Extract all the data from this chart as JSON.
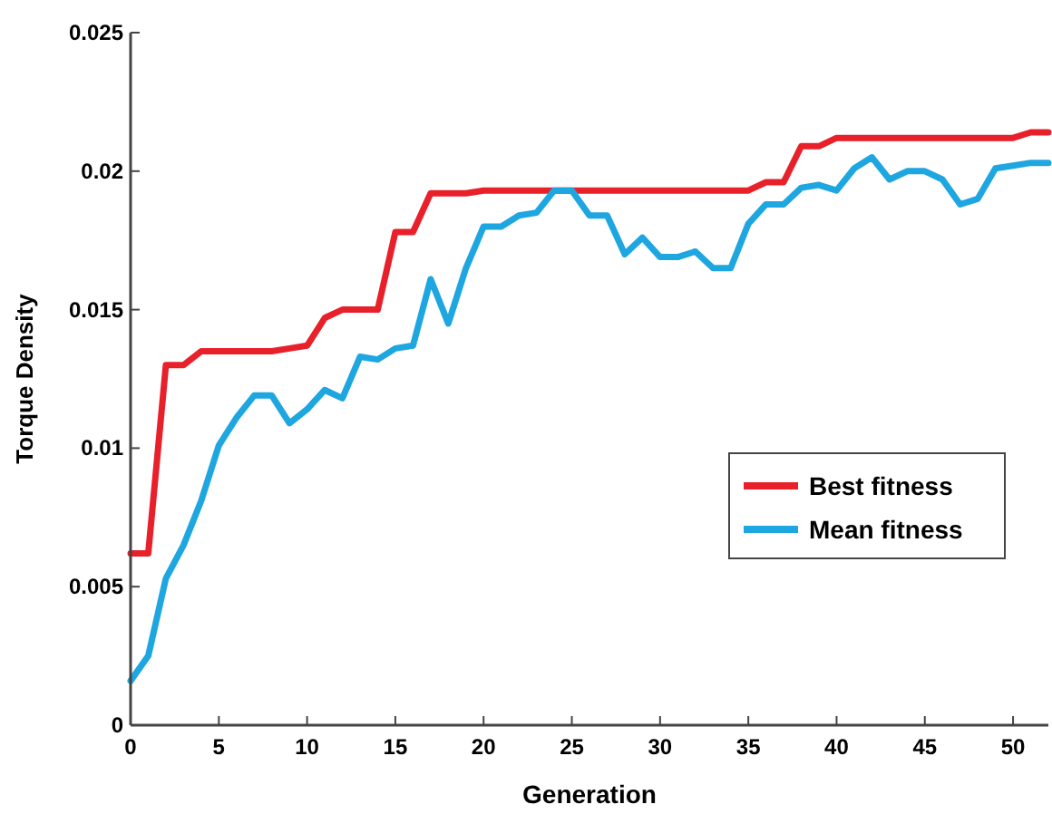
{
  "chart_data": {
    "type": "line",
    "xlabel": "Generation",
    "ylabel": "Torque Density",
    "x": [
      0,
      1,
      2,
      3,
      4,
      5,
      6,
      7,
      8,
      9,
      10,
      11,
      12,
      13,
      14,
      15,
      16,
      17,
      18,
      19,
      20,
      21,
      22,
      23,
      24,
      25,
      26,
      27,
      28,
      29,
      30,
      31,
      32,
      33,
      34,
      35,
      36,
      37,
      38,
      39,
      40,
      41,
      42,
      43,
      44,
      45,
      46,
      47,
      48,
      49,
      50,
      51,
      52
    ],
    "series": [
      {
        "name": "Best fitness",
        "color": "#e8202a",
        "values": [
          0.0062,
          0.0062,
          0.013,
          0.013,
          0.0135,
          0.0135,
          0.0135,
          0.0135,
          0.0135,
          0.0136,
          0.0137,
          0.0147,
          0.015,
          0.015,
          0.015,
          0.0178,
          0.0178,
          0.0192,
          0.0192,
          0.0192,
          0.0193,
          0.0193,
          0.0193,
          0.0193,
          0.0193,
          0.0193,
          0.0193,
          0.0193,
          0.0193,
          0.0193,
          0.0193,
          0.0193,
          0.0193,
          0.0193,
          0.0193,
          0.0193,
          0.0196,
          0.0196,
          0.0209,
          0.0209,
          0.0212,
          0.0212,
          0.0212,
          0.0212,
          0.0212,
          0.0212,
          0.0212,
          0.0212,
          0.0212,
          0.0212,
          0.0212,
          0.0214,
          0.0214
        ]
      },
      {
        "name": "Mean fitness",
        "color": "#1ea6e0",
        "values": [
          0.0016,
          0.0025,
          0.0053,
          0.0065,
          0.0081,
          0.0101,
          0.0111,
          0.0119,
          0.0119,
          0.0109,
          0.0114,
          0.0121,
          0.0118,
          0.0133,
          0.0132,
          0.0136,
          0.0137,
          0.0161,
          0.0145,
          0.0165,
          0.018,
          0.018,
          0.0184,
          0.0185,
          0.0193,
          0.0193,
          0.0184,
          0.0184,
          0.017,
          0.0176,
          0.0169,
          0.0169,
          0.0171,
          0.0165,
          0.0165,
          0.0181,
          0.0188,
          0.0188,
          0.0194,
          0.0195,
          0.0193,
          0.0201,
          0.0205,
          0.0197,
          0.02,
          0.02,
          0.0197,
          0.0188,
          0.019,
          0.0201,
          0.0202,
          0.0203,
          0.0203
        ]
      }
    ],
    "xlim": [
      0,
      52
    ],
    "xticks": [
      0,
      5,
      10,
      15,
      20,
      25,
      30,
      35,
      40,
      45,
      50
    ],
    "ylim": [
      0,
      0.025
    ],
    "yticks": [
      0,
      0.005,
      0.01,
      0.015,
      0.02,
      0.025
    ],
    "grid": false,
    "legend": "bottom right",
    "line_style": "solid",
    "marker": "none"
  }
}
